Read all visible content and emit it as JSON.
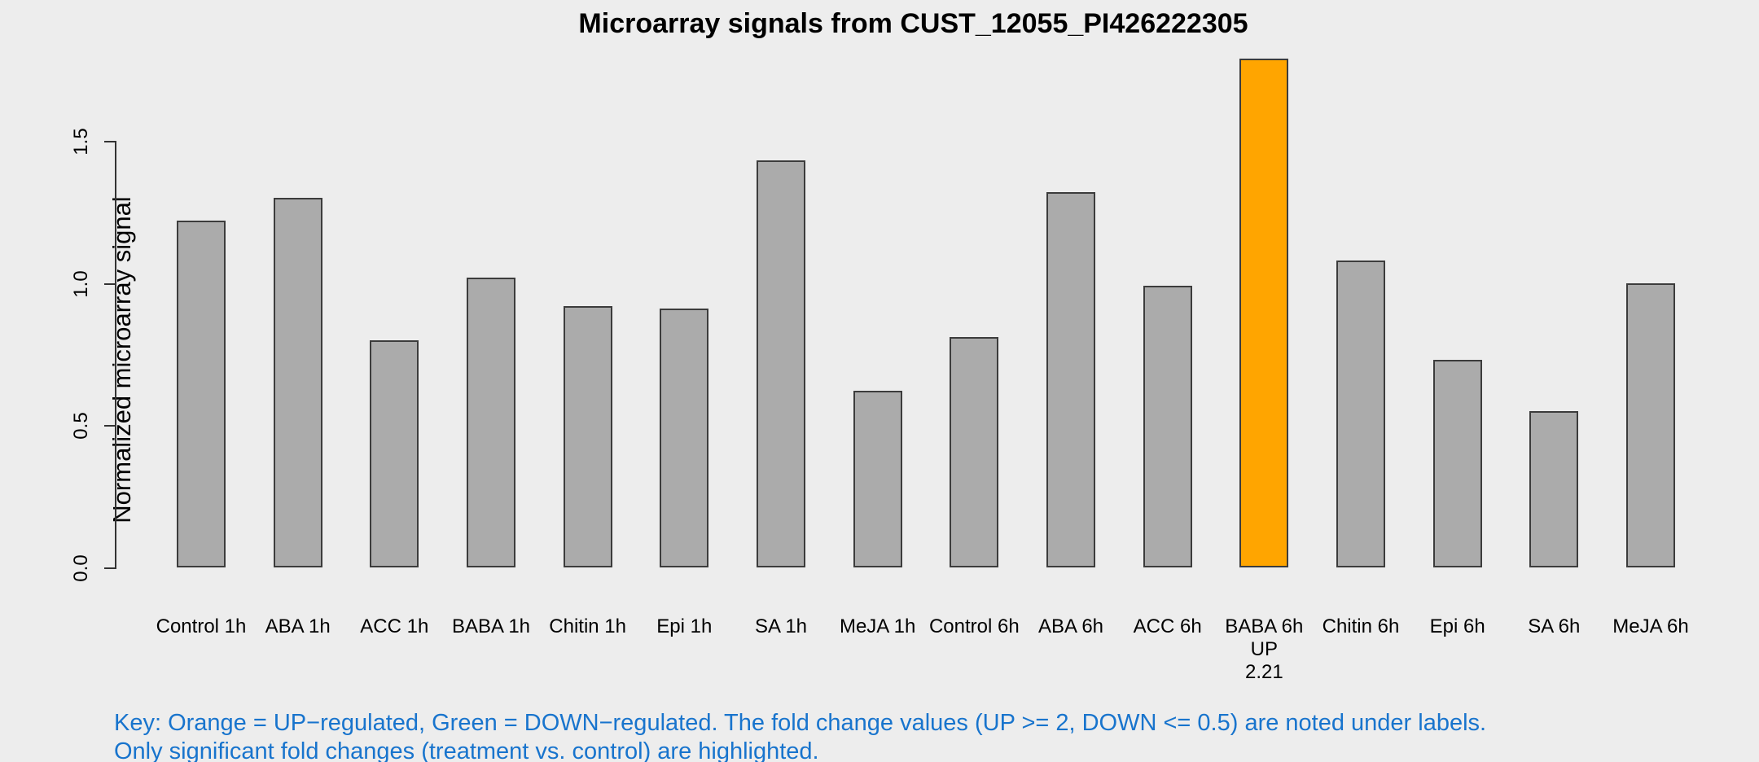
{
  "chart_data": {
    "type": "bar",
    "title": "Microarray signals from CUST_12055_PI426222305",
    "xlabel": "",
    "ylabel": "Normalized microarray signal",
    "categories": [
      "Control 1h",
      "ABA 1h",
      "ACC 1h",
      "BABA 1h",
      "Chitin 1h",
      "Epi 1h",
      "SA 1h",
      "MeJA 1h",
      "Control 6h",
      "ABA 6h",
      "ACC 6h",
      "BABA 6h",
      "Chitin 6h",
      "Epi 6h",
      "SA 6h",
      "MeJA 6h"
    ],
    "values": [
      1.22,
      1.3,
      0.8,
      1.02,
      0.92,
      0.91,
      1.43,
      0.62,
      0.81,
      1.32,
      0.99,
      1.79,
      1.08,
      0.73,
      0.55,
      1.0
    ],
    "ylim": [
      0.0,
      1.8
    ],
    "yticks": [
      0.0,
      0.5,
      1.0,
      1.5
    ],
    "ytick_labels": [
      "0.0",
      "0.5",
      "1.0",
      "1.5"
    ],
    "grid": false,
    "legend_position": "none",
    "highlighted_bars": [
      {
        "index": 11,
        "category": "BABA 6h",
        "regulation": "UP",
        "fold_change": "2.21"
      }
    ]
  },
  "key": {
    "line1": "Key: Orange = UP−regulated, Green = DOWN−regulated. The fold change values (UP >= 2, DOWN <= 0.5) are noted under labels.",
    "line2": "Only significant fold changes (treatment vs. control) are highlighted."
  },
  "colors": {
    "background": "#EDEDED",
    "bar_fill": "#ABABAB",
    "bar_border": "#3c3c3c",
    "up_regulated_fill": "#FFA500",
    "axis": "#333333",
    "text": "#000000",
    "key_text": "#1874CD"
  }
}
